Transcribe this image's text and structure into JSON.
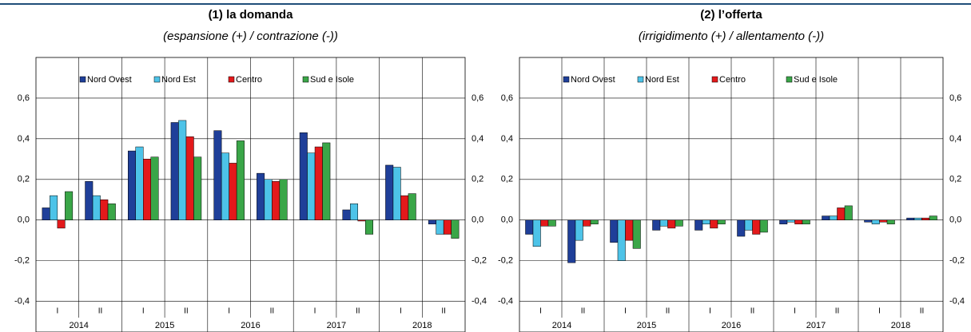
{
  "chart_data": [
    {
      "type": "bar",
      "title": "(1) la domanda",
      "subtitle": "(espansione (+) / contrazione (-))",
      "categories": [
        "I",
        "II",
        "I",
        "II",
        "I",
        "II",
        "I",
        "II",
        "I",
        "II"
      ],
      "years": [
        "2014",
        "2015",
        "2016",
        "2017",
        "2018"
      ],
      "ylim": [
        -0.5,
        0.8
      ],
      "yticks": [
        {
          "value": -0.4,
          "label": "-0,4"
        },
        {
          "value": -0.2,
          "label": "-0,2"
        },
        {
          "value": 0,
          "label": "0,0"
        },
        {
          "value": 0.2,
          "label": "0,2"
        },
        {
          "value": 0.4,
          "label": "0,4"
        },
        {
          "value": 0.6,
          "label": "0,6"
        }
      ],
      "grid": true,
      "legend": "top",
      "series": [
        {
          "name": "Nord Ovest",
          "color": "#1f3f99",
          "values": [
            0.06,
            0.19,
            0.34,
            0.48,
            0.44,
            0.23,
            0.43,
            0.05,
            0.27,
            -0.02
          ]
        },
        {
          "name": "Nord Est",
          "color": "#4dc3e8",
          "values": [
            0.12,
            0.12,
            0.36,
            0.49,
            0.33,
            0.2,
            0.33,
            0.08,
            0.26,
            -0.07
          ]
        },
        {
          "name": "Centro",
          "color": "#e3191b",
          "values": [
            -0.04,
            0.1,
            0.3,
            0.41,
            0.28,
            0.19,
            0.36,
            -0.005,
            0.12,
            -0.07
          ]
        },
        {
          "name": "Sud e Isole",
          "color": "#3aa648",
          "values": [
            0.14,
            0.08,
            0.31,
            0.31,
            0.39,
            0.2,
            0.38,
            -0.07,
            0.13,
            -0.09
          ]
        }
      ]
    },
    {
      "type": "bar",
      "title": "(2) l’offerta",
      "subtitle": "(irrigidimento (+) / allentamento (-))",
      "categories": [
        "I",
        "II",
        "I",
        "II",
        "I",
        "II",
        "I",
        "II",
        "I",
        "II"
      ],
      "years": [
        "2014",
        "2015",
        "2016",
        "2017",
        "2018"
      ],
      "ylim": [
        -0.5,
        0.8
      ],
      "yticks": [
        {
          "value": -0.4,
          "label": "-0,4"
        },
        {
          "value": -0.2,
          "label": "-0,2"
        },
        {
          "value": 0,
          "label": "0,0"
        },
        {
          "value": 0.2,
          "label": "0,2"
        },
        {
          "value": 0.4,
          "label": "0,4"
        },
        {
          "value": 0.6,
          "label": "0,6"
        }
      ],
      "grid": true,
      "legend": "top",
      "series": [
        {
          "name": "Nord Ovest",
          "color": "#1f3f99",
          "values": [
            -0.07,
            -0.21,
            -0.11,
            -0.05,
            -0.05,
            -0.08,
            -0.02,
            0.02,
            -0.01,
            0.01
          ]
        },
        {
          "name": "Nord Est",
          "color": "#4dc3e8",
          "values": [
            -0.13,
            -0.1,
            -0.2,
            -0.03,
            -0.02,
            -0.05,
            -0.01,
            0.02,
            -0.02,
            0.01
          ]
        },
        {
          "name": "Centro",
          "color": "#e3191b",
          "values": [
            -0.03,
            -0.03,
            -0.1,
            -0.04,
            -0.04,
            -0.07,
            -0.02,
            0.06,
            -0.01,
            0.01
          ]
        },
        {
          "name": "Sud e Isole",
          "color": "#3aa648",
          "values": [
            -0.03,
            -0.02,
            -0.14,
            -0.03,
            -0.02,
            -0.06,
            -0.02,
            0.07,
            -0.02,
            0.02
          ]
        }
      ]
    }
  ]
}
